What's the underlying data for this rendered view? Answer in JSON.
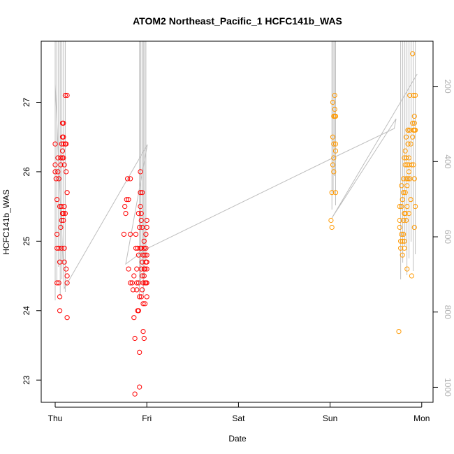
{
  "chart_data": {
    "type": "scatter",
    "title": "ATOM2 Northeast_Pacific_1 HCFC141b_WAS",
    "xlabel": "Date",
    "ylabel": "HCFC141b_WAS",
    "x_ticks": [
      "Thu",
      "Fri",
      "Sat",
      "Sun",
      "Mon"
    ],
    "y_ticks": [
      "23",
      "24",
      "25",
      "26",
      "27"
    ],
    "ylim": [
      22.68,
      27.88
    ],
    "right_axis": {
      "label": "",
      "ticks": [
        "200",
        "400",
        "600",
        "800",
        "1000"
      ],
      "reversed": true,
      "ylim": [
        80,
        1040
      ]
    },
    "xlim_days": [
      -0.1,
      4.08
    ],
    "colors": {
      "series1": "#ff0000",
      "series2": "#ff9900",
      "pressure": "#bebebe"
    },
    "series": [
      {
        "color": "#ff0000",
        "points": [
          [
            0.0,
            26.4
          ],
          [
            0.0,
            26.1
          ],
          [
            0.0,
            26.0
          ],
          [
            0.01,
            25.9
          ],
          [
            0.02,
            25.6
          ],
          [
            0.02,
            25.1
          ],
          [
            0.02,
            24.9
          ],
          [
            0.02,
            24.4
          ],
          [
            0.03,
            26.0
          ],
          [
            0.03,
            26.2
          ],
          [
            0.04,
            25.9
          ],
          [
            0.04,
            24.9
          ],
          [
            0.04,
            24.4
          ],
          [
            0.05,
            24.7
          ],
          [
            0.05,
            24.0
          ],
          [
            0.05,
            24.2
          ],
          [
            0.05,
            25.5
          ],
          [
            0.06,
            25.2
          ],
          [
            0.06,
            26.1
          ],
          [
            0.06,
            26.2
          ],
          [
            0.07,
            25.3
          ],
          [
            0.07,
            25.5
          ],
          [
            0.07,
            24.9
          ],
          [
            0.07,
            26.4
          ],
          [
            0.08,
            26.5
          ],
          [
            0.08,
            26.7
          ],
          [
            0.08,
            25.4
          ],
          [
            0.08,
            26.3
          ],
          [
            0.08,
            26.2
          ],
          [
            0.09,
            26.7
          ],
          [
            0.09,
            26.5
          ],
          [
            0.09,
            26.4
          ],
          [
            0.09,
            26.2
          ],
          [
            0.09,
            25.4
          ],
          [
            0.09,
            25.3
          ],
          [
            0.1,
            26.1
          ],
          [
            0.1,
            24.9
          ],
          [
            0.1,
            25.5
          ],
          [
            0.1,
            24.7
          ],
          [
            0.11,
            26.4
          ],
          [
            0.11,
            25.4
          ],
          [
            0.11,
            27.1
          ],
          [
            0.12,
            24.6
          ],
          [
            0.12,
            26.4
          ],
          [
            0.12,
            26.0
          ],
          [
            0.13,
            27.1
          ],
          [
            0.13,
            25.7
          ],
          [
            0.13,
            24.4
          ],
          [
            0.13,
            24.5
          ],
          [
            0.13,
            23.9
          ],
          [
            0.75,
            25.1
          ],
          [
            0.76,
            25.5
          ],
          [
            0.77,
            25.4
          ],
          [
            0.78,
            25.6
          ],
          [
            0.79,
            25.9
          ],
          [
            0.8,
            25.6
          ],
          [
            0.82,
            25.1
          ],
          [
            0.8,
            24.6
          ],
          [
            0.82,
            24.4
          ],
          [
            0.84,
            24.4
          ],
          [
            0.82,
            25.9
          ],
          [
            0.85,
            24.3
          ],
          [
            0.86,
            23.9
          ],
          [
            0.86,
            24.5
          ],
          [
            0.87,
            23.6
          ],
          [
            0.87,
            22.8
          ],
          [
            0.88,
            24.9
          ],
          [
            0.88,
            25.1
          ],
          [
            0.89,
            24.4
          ],
          [
            0.89,
            24.6
          ],
          [
            0.89,
            24.3
          ],
          [
            0.9,
            24.0
          ],
          [
            0.9,
            24.9
          ],
          [
            0.91,
            25.4
          ],
          [
            0.91,
            24.4
          ],
          [
            0.91,
            24.8
          ],
          [
            0.91,
            24.0
          ],
          [
            0.92,
            23.4
          ],
          [
            0.92,
            22.9
          ],
          [
            0.92,
            25.2
          ],
          [
            0.92,
            24.2
          ],
          [
            0.93,
            25.7
          ],
          [
            0.93,
            26.0
          ],
          [
            0.93,
            25.5
          ],
          [
            0.93,
            24.9
          ],
          [
            0.94,
            25.4
          ],
          [
            0.94,
            24.6
          ],
          [
            0.94,
            25.3
          ],
          [
            0.94,
            24.2
          ],
          [
            0.94,
            24.9
          ],
          [
            0.95,
            24.3
          ],
          [
            0.95,
            24.5
          ],
          [
            0.95,
            25.7
          ],
          [
            0.95,
            25.2
          ],
          [
            0.95,
            24.7
          ],
          [
            0.96,
            24.4
          ],
          [
            0.96,
            23.7
          ],
          [
            0.96,
            24.8
          ],
          [
            0.96,
            24.1
          ],
          [
            0.97,
            24.6
          ],
          [
            0.97,
            25.0
          ],
          [
            0.97,
            24.5
          ],
          [
            0.97,
            23.6
          ],
          [
            0.97,
            24.9
          ],
          [
            0.98,
            24.4
          ],
          [
            0.98,
            24.8
          ],
          [
            0.98,
            24.1
          ],
          [
            0.98,
            24.6
          ],
          [
            0.99,
            24.7
          ],
          [
            0.99,
            24.9
          ],
          [
            0.99,
            25.1
          ],
          [
            0.99,
            24.4
          ],
          [
            1.0,
            25.3
          ],
          [
            1.0,
            24.7
          ],
          [
            1.0,
            24.2
          ],
          [
            1.0,
            24.6
          ],
          [
            1.0,
            25.2
          ],
          [
            1.0,
            24.8
          ],
          [
            1.0,
            24.4
          ]
        ]
      },
      {
        "color": "#ff9900",
        "points": [
          [
            3.01,
            25.3
          ],
          [
            3.02,
            25.2
          ],
          [
            3.02,
            25.7
          ],
          [
            3.03,
            26.5
          ],
          [
            3.03,
            26.1
          ],
          [
            3.03,
            27.0
          ],
          [
            3.04,
            26.8
          ],
          [
            3.04,
            26.4
          ],
          [
            3.04,
            26.2
          ],
          [
            3.04,
            26.0
          ],
          [
            3.05,
            26.8
          ],
          [
            3.05,
            27.1
          ],
          [
            3.05,
            26.9
          ],
          [
            3.06,
            26.4
          ],
          [
            3.06,
            26.3
          ],
          [
            3.06,
            26.8
          ],
          [
            3.06,
            25.7
          ],
          [
            3.75,
            23.7
          ],
          [
            3.76,
            25.5
          ],
          [
            3.76,
            25.3
          ],
          [
            3.76,
            25.2
          ],
          [
            3.77,
            24.9
          ],
          [
            3.77,
            25.0
          ],
          [
            3.78,
            25.5
          ],
          [
            3.78,
            25.8
          ],
          [
            3.78,
            25.1
          ],
          [
            3.79,
            25.0
          ],
          [
            3.79,
            24.8
          ],
          [
            3.79,
            25.6
          ],
          [
            3.8,
            25.9
          ],
          [
            3.8,
            25.1
          ],
          [
            3.8,
            25.7
          ],
          [
            3.8,
            25.3
          ],
          [
            3.81,
            24.9
          ],
          [
            3.81,
            25.0
          ],
          [
            3.81,
            25.4
          ],
          [
            3.81,
            26.2
          ],
          [
            3.82,
            26.3
          ],
          [
            3.82,
            25.7
          ],
          [
            3.82,
            25.4
          ],
          [
            3.82,
            26.1
          ],
          [
            3.83,
            26.5
          ],
          [
            3.83,
            25.9
          ],
          [
            3.83,
            26.2
          ],
          [
            3.83,
            25.3
          ],
          [
            3.84,
            26.1
          ],
          [
            3.84,
            25.8
          ],
          [
            3.84,
            25.5
          ],
          [
            3.84,
            24.6
          ],
          [
            3.85,
            26.6
          ],
          [
            3.85,
            26.4
          ],
          [
            3.85,
            26.6
          ],
          [
            3.85,
            25.9
          ],
          [
            3.86,
            26.1
          ],
          [
            3.86,
            26.2
          ],
          [
            3.86,
            25.4
          ],
          [
            3.86,
            26.0
          ],
          [
            3.87,
            26.6
          ],
          [
            3.87,
            27.1
          ],
          [
            3.87,
            25.9
          ],
          [
            3.88,
            26.4
          ],
          [
            3.88,
            25.6
          ],
          [
            3.89,
            26.1
          ],
          [
            3.89,
            24.5
          ],
          [
            3.9,
            26.7
          ],
          [
            3.9,
            27.7
          ],
          [
            3.9,
            26.5
          ],
          [
            3.91,
            27.1
          ],
          [
            3.91,
            26.6
          ],
          [
            3.91,
            26.1
          ],
          [
            3.92,
            26.8
          ],
          [
            3.92,
            26.7
          ],
          [
            3.92,
            26.6
          ],
          [
            3.92,
            25.9
          ],
          [
            3.92,
            25.2
          ],
          [
            3.93,
            27.1
          ],
          [
            3.93,
            26.6
          ],
          [
            3.93,
            25.5
          ]
        ]
      }
    ]
  }
}
